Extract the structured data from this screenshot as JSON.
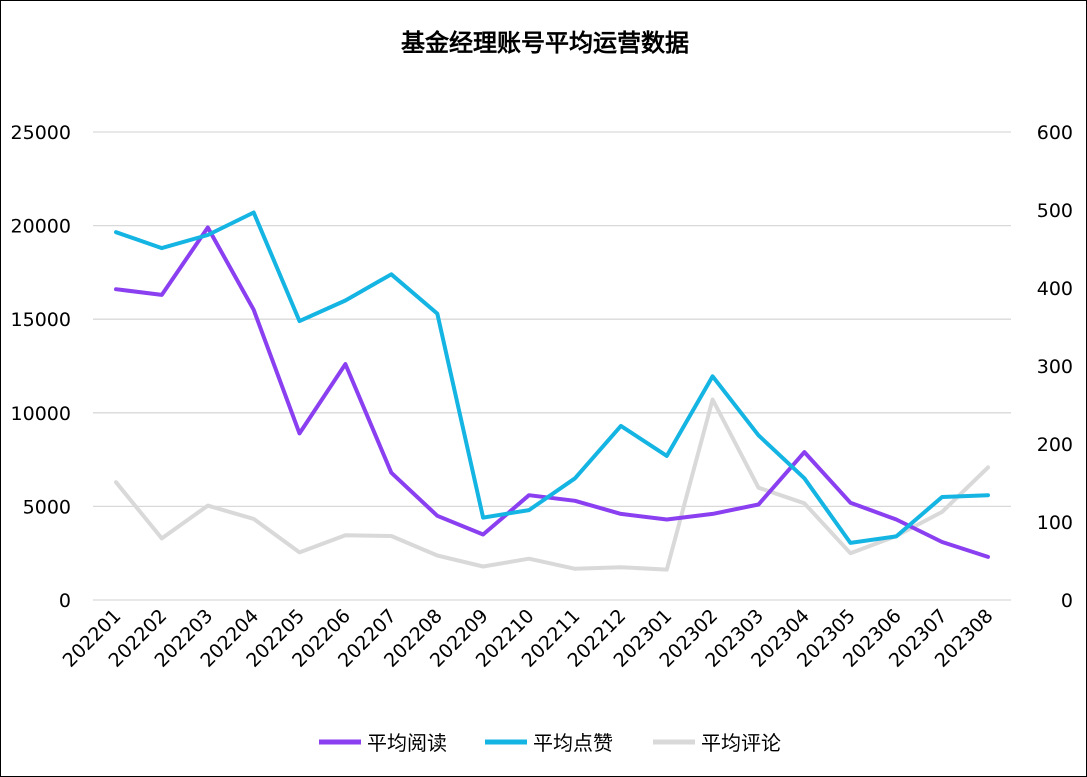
{
  "chart_data": {
    "type": "line",
    "title": "基金经理账号平均运营数据",
    "categories": [
      "202201",
      "202202",
      "202203",
      "202204",
      "202205",
      "202206",
      "202207",
      "202208",
      "202209",
      "202210",
      "202211",
      "202212",
      "202301",
      "202302",
      "202303",
      "202304",
      "202305",
      "202306",
      "202307",
      "202308"
    ],
    "y_left": {
      "ticks": [
        0,
        5000,
        10000,
        15000,
        20000,
        25000
      ],
      "range": [
        0,
        25000
      ]
    },
    "y_right": {
      "ticks": [
        0,
        100,
        200,
        300,
        400,
        500,
        600
      ],
      "range": [
        0,
        600
      ]
    },
    "grid": true,
    "legend_position": "bottom",
    "series": [
      {
        "name": "平均阅读",
        "axis": "left",
        "color": "#8a3ff0",
        "values": [
          16600,
          16300,
          19900,
          15500,
          8900,
          12600,
          6800,
          4500,
          3500,
          5600,
          5300,
          4600,
          4300,
          4600,
          5100,
          7900,
          5200,
          4300,
          3100,
          2300
        ]
      },
      {
        "name": "平均点赞",
        "axis": "left",
        "color": "#14b4e3",
        "values": [
          19650,
          18800,
          19500,
          20700,
          14900,
          16000,
          17400,
          15300,
          4400,
          4800,
          6500,
          9300,
          7700,
          11950,
          8800,
          6500,
          3050,
          3400,
          5500,
          5600
        ]
      },
      {
        "name": "平均评论",
        "axis": "right",
        "color": "#d9d9d9",
        "values": [
          151,
          79,
          121,
          104,
          61,
          83,
          82,
          57,
          43,
          53,
          40,
          42,
          39,
          257,
          144,
          124,
          60,
          82,
          113,
          170
        ]
      }
    ]
  }
}
